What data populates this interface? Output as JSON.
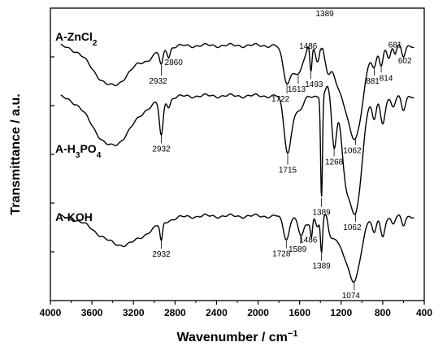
{
  "chart_data": {
    "type": "line",
    "xlabel": "Wavenumber / cm",
    "xlabel_sup": "−1",
    "ylabel": "Transmittance / a.u.",
    "xlim": [
      4000,
      400
    ],
    "x_reversed": true,
    "x_ticks": [
      "4000",
      "3600",
      "3200",
      "2800",
      "2400",
      "2000",
      "1600",
      "1200",
      "800",
      "400"
    ],
    "y_ticks_labelled": false,
    "grid": false,
    "series": [
      {
        "name": "A-ZnCl",
        "name_sub": "2",
        "offset": 0,
        "peaks": [
          {
            "label": "2932",
            "x": 2932
          },
          {
            "label": "2860",
            "x": 2860
          },
          {
            "label": "1722",
            "x": 1722
          },
          {
            "label": "1613",
            "x": 1613
          },
          {
            "label": "1486",
            "x": 1486
          },
          {
            "label": "1493",
            "x": 1493
          },
          {
            "label": "1389",
            "x": 1389
          },
          {
            "label": "1062",
            "x": 1062
          },
          {
            "label": "881",
            "x": 881
          },
          {
            "label": "814",
            "x": 814
          },
          {
            "label": "681",
            "x": 681
          },
          {
            "label": "602",
            "x": 602
          }
        ]
      },
      {
        "name": "A-H",
        "name_sub": "3",
        "name_mid": "PO",
        "name_sub2": "4",
        "offset": 1,
        "peaks": [
          {
            "label": "2932",
            "x": 2932
          },
          {
            "label": "1715",
            "x": 1715
          },
          {
            "label": "1389",
            "x": 1389
          },
          {
            "label": "1268",
            "x": 1268
          },
          {
            "label": "1062",
            "x": 1062
          }
        ]
      },
      {
        "name": "A-KOH",
        "offset": 2,
        "peaks": [
          {
            "label": "2932",
            "x": 2932
          },
          {
            "label": "1728",
            "x": 1728
          },
          {
            "label": "1589",
            "x": 1589
          },
          {
            "label": "1486",
            "x": 1486
          },
          {
            "label": "1389",
            "x": 1389
          },
          {
            "label": "1074",
            "x": 1074
          }
        ]
      }
    ]
  }
}
